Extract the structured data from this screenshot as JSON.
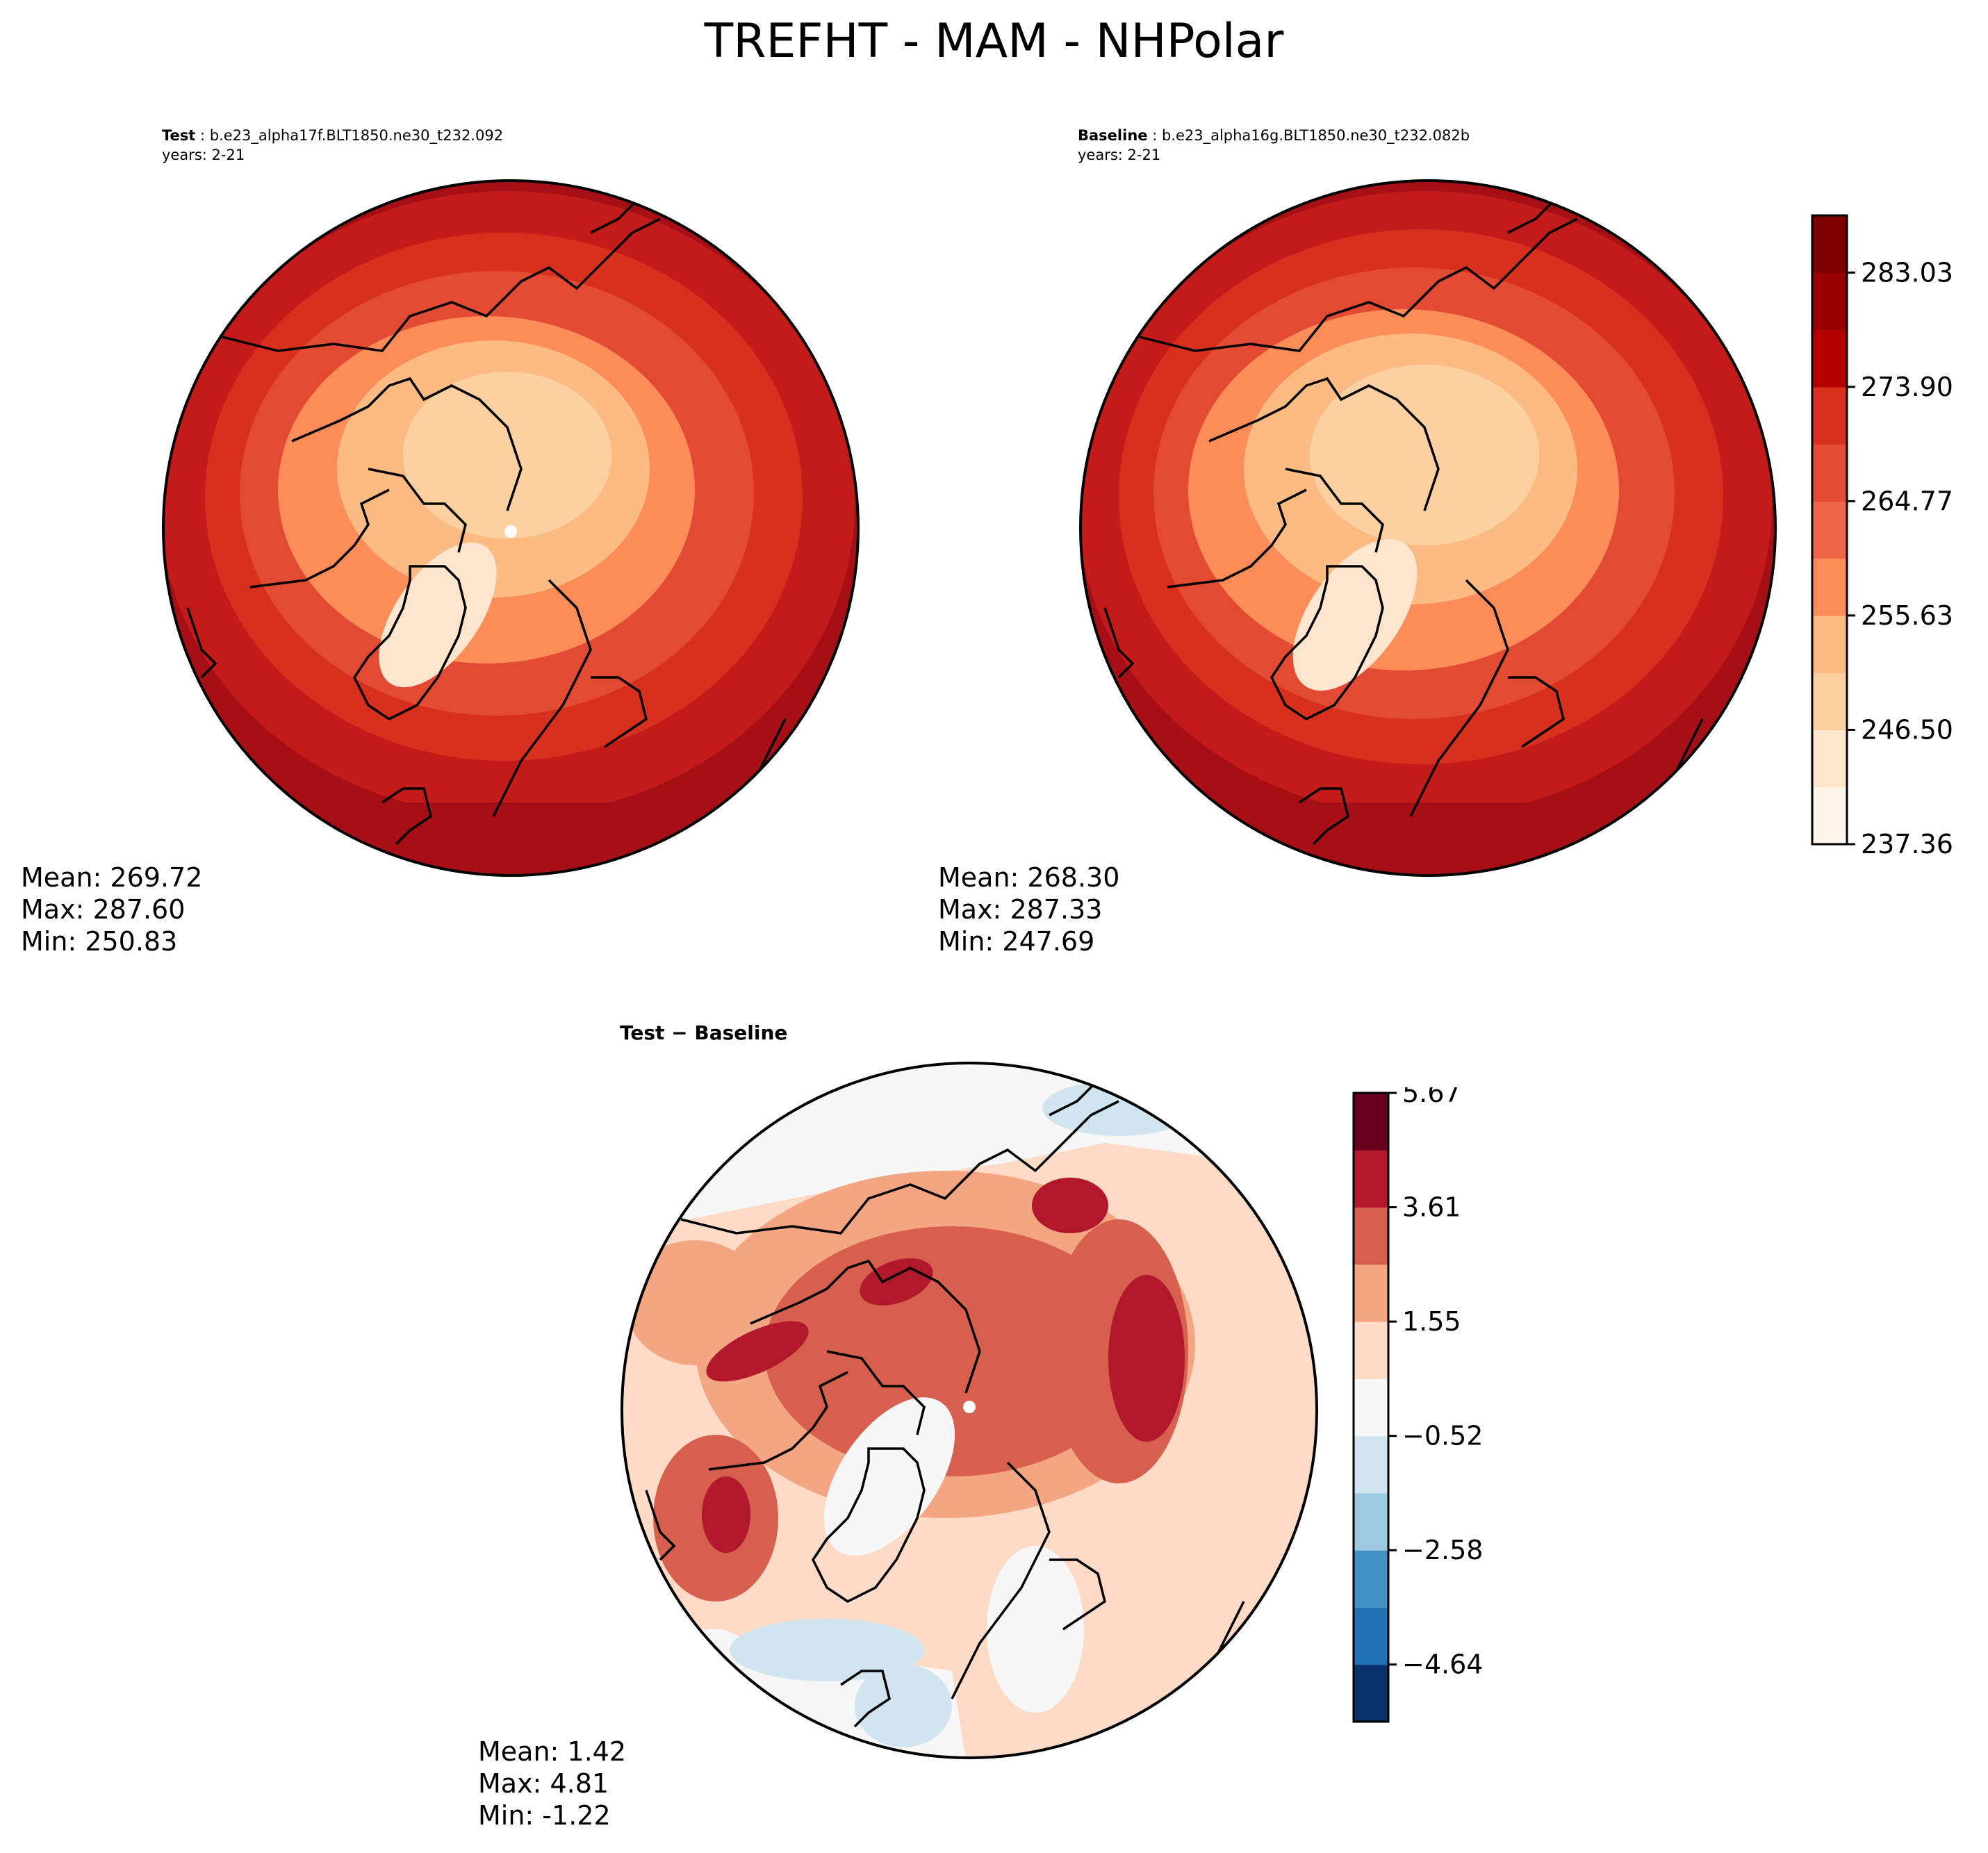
{
  "figure": {
    "title": "TREFHT - MAM - NHPolar"
  },
  "panels": {
    "test": {
      "header_label": "Test",
      "header_case": " : b.e23_alpha17f.BLT1850.ne30_t232.092",
      "years": "years: 2-21",
      "stats": [
        "Mean: 269.72",
        "Max: 287.60",
        "Min: 250.83"
      ]
    },
    "baseline": {
      "header_label": "Baseline",
      "header_case": " : b.e23_alpha16g.BLT1850.ne30_t232.082b",
      "years": "years: 2-21",
      "stats": [
        "Mean: 268.30",
        "Max: 287.33",
        "Min: 247.69"
      ]
    },
    "difference": {
      "title": "Test − Baseline",
      "stats": [
        "Mean:  1.42",
        "Max:  4.81",
        "Min: -1.22"
      ]
    }
  },
  "colorbars": {
    "absolute": {
      "ticks": [
        "237.36",
        "246.50",
        "255.63",
        "264.77",
        "273.90",
        "283.03"
      ],
      "colors": [
        "#fff5eb",
        "#fee6ce",
        "#fdd0a2",
        "#fdbb84",
        "#fc8d59",
        "#ef6548",
        "#e34a33",
        "#d7301f",
        "#b30000",
        "#990000",
        "#7f0000"
      ]
    },
    "difference": {
      "ticks": [
        "−4.64",
        "−2.58",
        "−0.52",
        "1.55",
        "3.61",
        "5.67"
      ],
      "colors": [
        "#08306b",
        "#2171b5",
        "#4292c6",
        "#9ecae1",
        "#d1e5f0",
        "#f7f7f7",
        "#fddbc7",
        "#f4a582",
        "#d6604d",
        "#b2182b",
        "#67001f"
      ]
    }
  },
  "map_colors": {
    "abs_outer": "#a50f15",
    "abs_ring1": "#c31a1a",
    "abs_ring2": "#d7301f",
    "abs_ring3": "#e34a33",
    "abs_ring4": "#fc8d59",
    "abs_ring5": "#fdbb84",
    "abs_core": "#fdd0a2",
    "abs_greenland": "#fee6ce",
    "diff_bg": "#fddbc7",
    "diff_mid": "#f4a582",
    "diff_high": "#d6604d",
    "diff_max": "#b2182b",
    "diff_neutral": "#f7f7f7",
    "diff_cool": "#d1e5f0"
  }
}
